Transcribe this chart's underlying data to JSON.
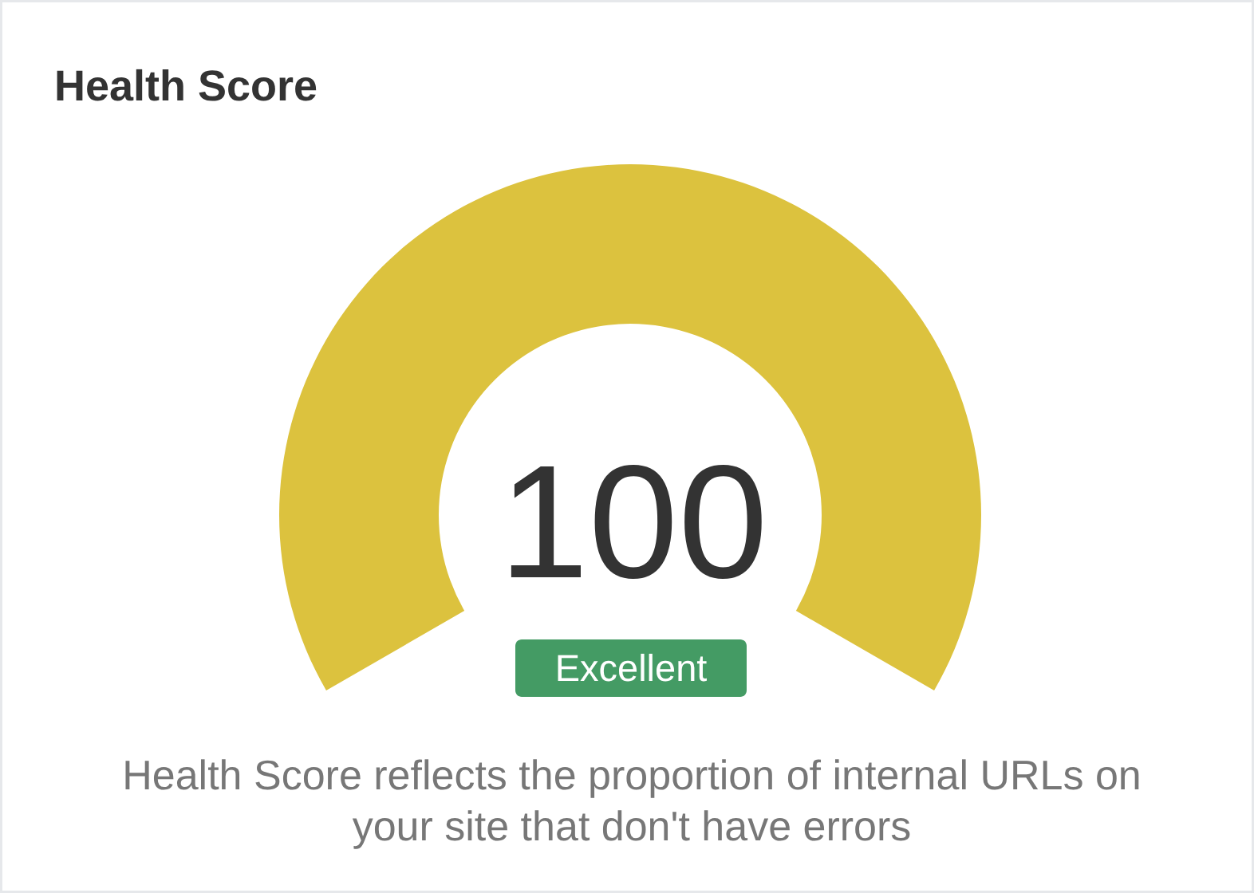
{
  "chart_data": {
    "type": "other",
    "title": "Health Score",
    "values": [
      100
    ],
    "data_labels": true,
    "colors": [
      "#dcc23e"
    ],
    "annotations": [
      "Excellent",
      "Health Score reflects the proportion of internal URLs on your site that don't have errors"
    ]
  }
}
